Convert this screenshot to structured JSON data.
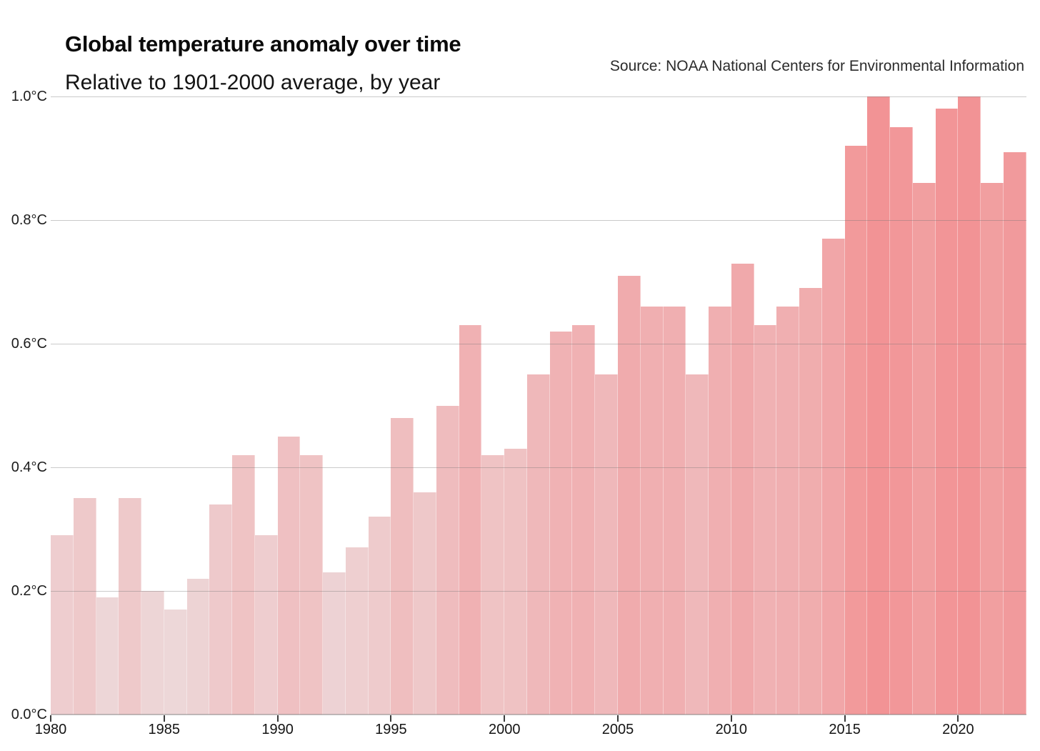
{
  "header": {
    "title": "Global temperature anomaly over time",
    "subtitle": "Relative to 1901-2000 average, by year",
    "source": "Source: NOAA National Centers for Environmental Information"
  },
  "chart_data": {
    "type": "bar",
    "title": "Global temperature anomaly over time",
    "subtitle": "Relative to 1901-2000 average, by year",
    "source": "Source: NOAA National Centers for Environmental Information",
    "unit": "°C",
    "categories": [
      1980,
      1981,
      1982,
      1983,
      1984,
      1985,
      1986,
      1987,
      1988,
      1989,
      1990,
      1991,
      1992,
      1993,
      1994,
      1995,
      1996,
      1997,
      1998,
      1999,
      2000,
      2001,
      2002,
      2003,
      2004,
      2005,
      2006,
      2007,
      2008,
      2009,
      2010,
      2011,
      2012,
      2013,
      2014,
      2015,
      2016,
      2017,
      2018,
      2019,
      2020,
      2021,
      2022
    ],
    "values": [
      0.29,
      0.35,
      0.19,
      0.35,
      0.2,
      0.17,
      0.22,
      0.34,
      0.42,
      0.29,
      0.45,
      0.42,
      0.23,
      0.27,
      0.32,
      0.48,
      0.36,
      0.5,
      0.63,
      0.42,
      0.43,
      0.55,
      0.62,
      0.63,
      0.55,
      0.71,
      0.66,
      0.66,
      0.55,
      0.66,
      0.73,
      0.63,
      0.66,
      0.69,
      0.77,
      0.92,
      1.0,
      0.95,
      0.86,
      0.98,
      1.0,
      0.86,
      0.91
    ],
    "ylim": [
      0.0,
      1.0
    ],
    "yticks": [
      0.0,
      0.2,
      0.4,
      0.6,
      0.8,
      1.0
    ],
    "ytick_labels": [
      "0.0°C",
      "0.2°C",
      "0.4°C",
      "0.6°C",
      "0.8°C",
      "1.0°C"
    ],
    "xticks": [
      1980,
      1985,
      1990,
      1995,
      2000,
      2005,
      2010,
      2015,
      2020
    ],
    "xtick_labels": [
      "1980",
      "1985",
      "1990",
      "1995",
      "2000",
      "2005",
      "2010",
      "2015",
      "2020"
    ],
    "grid": true,
    "legend": false,
    "palette": {
      "low_color": "#edd9da",
      "high_color": "#f29395",
      "low_value_anchor": 0.15,
      "high_value_anchor": 1.0
    }
  }
}
